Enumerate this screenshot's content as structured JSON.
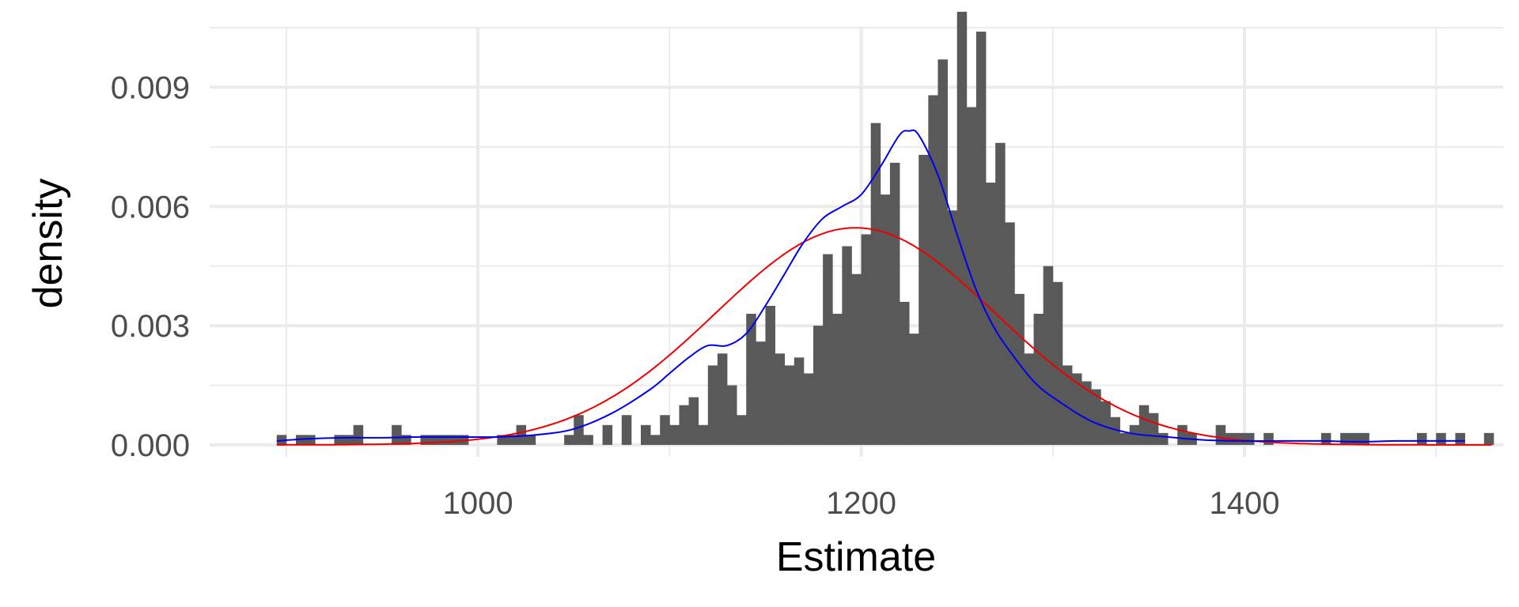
{
  "chart_data": {
    "type": "histogram",
    "xlabel": "Estimate",
    "ylabel": "density",
    "xlim": [
      860,
      1535
    ],
    "ylim": [
      -0.0003,
      0.0105
    ],
    "x_ticks": [
      {
        "value": 1000,
        "label": "1000"
      },
      {
        "value": 1200,
        "label": "1200"
      },
      {
        "value": 1400,
        "label": "1400"
      }
    ],
    "x_minor_ticks": [
      900,
      1100,
      1300,
      1500
    ],
    "y_ticks": [
      {
        "value": 0.0,
        "label": "0.000"
      },
      {
        "value": 0.003,
        "label": "0.003"
      },
      {
        "value": 0.006,
        "label": "0.006"
      },
      {
        "value": 0.009,
        "label": "0.009"
      }
    ],
    "y_minor_ticks": [
      0.0015,
      0.0045,
      0.0075,
      0.0105
    ],
    "grid": true,
    "bar_color": "#595959",
    "density_curve_color": "#0000ee",
    "normal_curve_color": "#ee0000",
    "normal_curve": {
      "mean": 1197,
      "sd": 73
    },
    "bins": {
      "start": 895,
      "width": 5,
      "counts": [
        0.00025,
        0,
        0.00025,
        0.00025,
        0,
        0,
        0.00025,
        0.00025,
        0.0005,
        0,
        0,
        0,
        0.0005,
        0.00025,
        0,
        0.00025,
        0.00025,
        0.00025,
        0.00025,
        0.00025,
        0,
        0,
        0,
        0.00025,
        0.00025,
        0.0005,
        0.00025,
        0,
        0,
        0,
        0.00025,
        0.00075,
        0.00025,
        0,
        0.0005,
        0,
        0.00075,
        0,
        0.0005,
        0.00025,
        0.00075,
        0.0005,
        0.001,
        0.0012,
        0.0005,
        0.002,
        0.0023,
        0.0015,
        0.00075,
        0.0033,
        0.0026,
        0.0035,
        0.0023,
        0.002,
        0.0022,
        0.0018,
        0.003,
        0.0048,
        0.0033,
        0.005,
        0.0043,
        0.0053,
        0.0081,
        0.0063,
        0.0071,
        0.0036,
        0.0028,
        0.0073,
        0.0088,
        0.0097,
        0.0059,
        0.0109,
        0.0085,
        0.0104,
        0.0066,
        0.0076,
        0.0056,
        0.0038,
        0.0023,
        0.0033,
        0.0045,
        0.0041,
        0.002,
        0.0018,
        0.0016,
        0.0014,
        0.0011,
        0.0007,
        0.0003,
        0.0005,
        0.001,
        0.0008,
        0.0003,
        0,
        0.0005,
        0.0003,
        0,
        0,
        0.0005,
        0.0003,
        0.0003,
        0.0003,
        0,
        0.0003,
        0,
        0,
        0,
        0,
        0,
        0.0003,
        0,
        0.0003,
        0.0003,
        0.0003,
        0,
        0,
        0,
        0,
        0,
        0.0003,
        0,
        0.0003,
        0,
        0.0003,
        0,
        0,
        0.0003
      ]
    },
    "density_curve": {
      "x": [
        895,
        910,
        930,
        950,
        970,
        990,
        1010,
        1030,
        1050,
        1070,
        1090,
        1100,
        1110,
        1120,
        1130,
        1140,
        1150,
        1160,
        1170,
        1180,
        1190,
        1200,
        1210,
        1220,
        1225,
        1230,
        1240,
        1250,
        1260,
        1270,
        1280,
        1290,
        1300,
        1320,
        1340,
        1360,
        1380,
        1400,
        1420,
        1440,
        1460,
        1480,
        1500,
        1515
      ],
      "y": [
        0.0001,
        0.00015,
        0.00018,
        0.00018,
        0.0002,
        0.0002,
        0.0002,
        0.00025,
        0.0004,
        0.0008,
        0.0014,
        0.0018,
        0.0022,
        0.0025,
        0.0025,
        0.0028,
        0.0035,
        0.0043,
        0.0051,
        0.0057,
        0.006,
        0.0063,
        0.007,
        0.0078,
        0.0079,
        0.0078,
        0.0068,
        0.0053,
        0.0039,
        0.0029,
        0.0022,
        0.0016,
        0.0012,
        0.0006,
        0.0003,
        0.0002,
        0.00012,
        0.0001,
        0.0001,
        0.0001,
        8e-05,
        0.0001,
        0.0001,
        0.0001
      ]
    }
  }
}
